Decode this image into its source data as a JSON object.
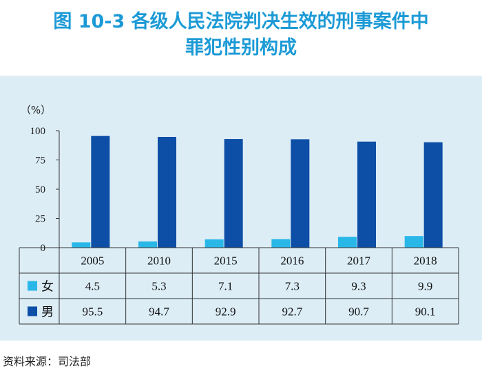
{
  "title_line1": "图 10-3  各级人民法院判决生效的刑事案件中",
  "title_line2": "罪犯性别构成",
  "source": "资料来源：司法部",
  "colors": {
    "title": "#1c9ad6",
    "female": "#29b7e8",
    "male": "#0d4ea6",
    "panel": "#dcedf6"
  },
  "chart_data": {
    "type": "bar",
    "title": "各级人民法院判决生效的刑事案件中罪犯性别构成",
    "unit_label": "（%）",
    "xlabel": "",
    "ylabel": "（%）",
    "ylim": [
      0,
      100
    ],
    "yticks": [
      0,
      25,
      50,
      75,
      100
    ],
    "categories": [
      "2005",
      "2010",
      "2015",
      "2016",
      "2017",
      "2018"
    ],
    "series": [
      {
        "name": "女",
        "color": "#29b7e8",
        "values": [
          4.5,
          5.3,
          7.1,
          7.3,
          9.3,
          9.9
        ]
      },
      {
        "name": "男",
        "color": "#0d4ea6",
        "values": [
          95.5,
          94.7,
          92.9,
          92.7,
          90.7,
          90.1
        ]
      }
    ],
    "table_values": [
      [
        "4.5",
        "5.3",
        "7.1",
        "7.3",
        "9.3",
        "9.9"
      ],
      [
        "95.5",
        "94.7",
        "92.9",
        "92.7",
        "90.7",
        "90.1"
      ]
    ],
    "legend_position": "table-left",
    "grid": false
  }
}
